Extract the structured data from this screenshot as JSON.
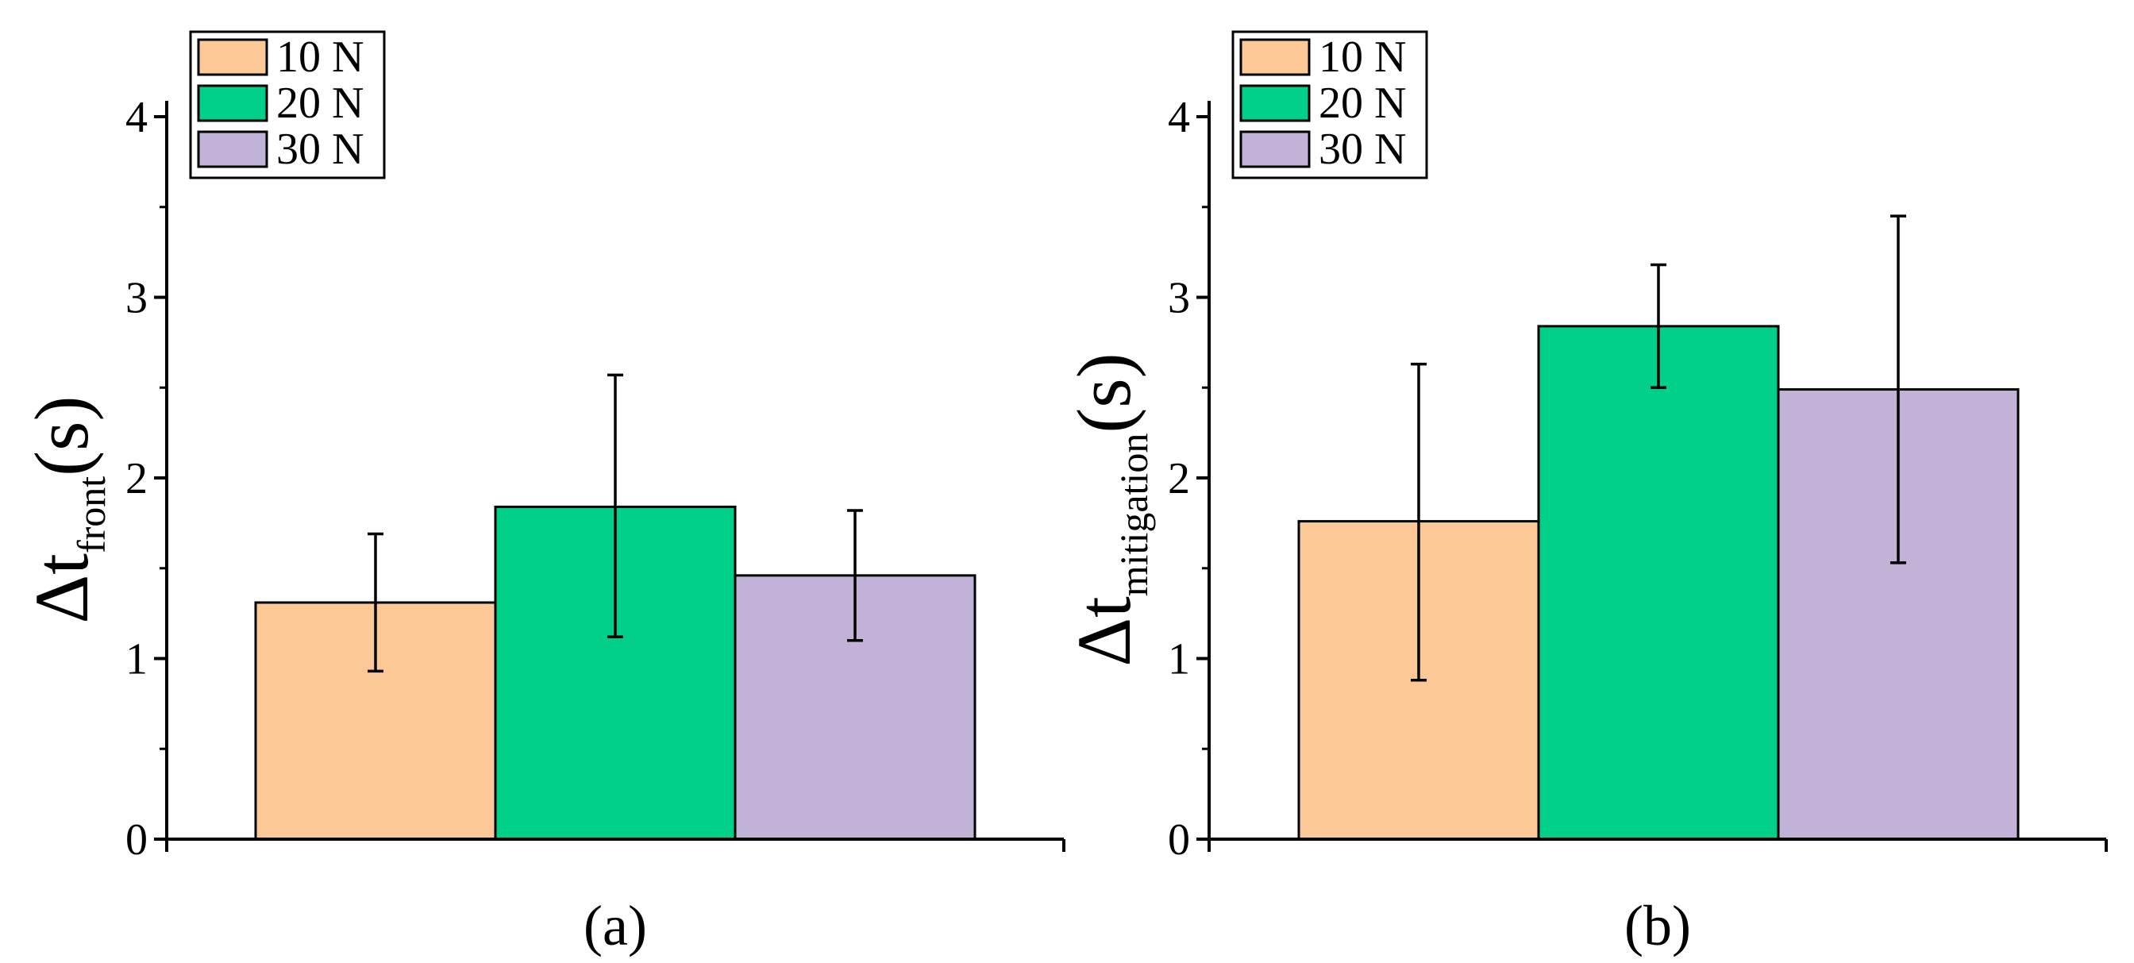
{
  "chart_data": [
    {
      "type": "bar",
      "panel_label": "(a)",
      "ylabel": {
        "main": "Δt",
        "sub": "front",
        "unit": "(s)"
      },
      "ylim": [
        0,
        4
      ],
      "yticks": [
        0,
        1,
        2,
        3,
        4
      ],
      "series": [
        {
          "name": "10 N",
          "value": 1.31,
          "error_low": 0.93,
          "error_high": 1.69,
          "color": "#FCC896"
        },
        {
          "name": "20 N",
          "value": 1.84,
          "error_low": 1.12,
          "error_high": 2.57,
          "color": "#00D08A"
        },
        {
          "name": "30 N",
          "value": 1.46,
          "error_low": 1.1,
          "error_high": 1.82,
          "color": "#C2B2D7"
        }
      ],
      "legend": {
        "position": "top-left",
        "entries": [
          "10 N",
          "20 N",
          "30 N"
        ]
      }
    },
    {
      "type": "bar",
      "panel_label": "(b)",
      "ylabel": {
        "main": "Δt",
        "sub": "mitigation",
        "unit": "(s)"
      },
      "ylim": [
        0,
        4
      ],
      "yticks": [
        0,
        1,
        2,
        3,
        4
      ],
      "series": [
        {
          "name": "10 N",
          "value": 1.76,
          "error_low": 0.88,
          "error_high": 2.63,
          "color": "#FCC896"
        },
        {
          "name": "20 N",
          "value": 2.84,
          "error_low": 2.5,
          "error_high": 3.18,
          "color": "#00D08A"
        },
        {
          "name": "30 N",
          "value": 2.49,
          "error_low": 1.53,
          "error_high": 3.45,
          "color": "#C2B2D7"
        }
      ],
      "legend": {
        "position": "top-left",
        "entries": [
          "10 N",
          "20 N",
          "30 N"
        ]
      }
    }
  ]
}
